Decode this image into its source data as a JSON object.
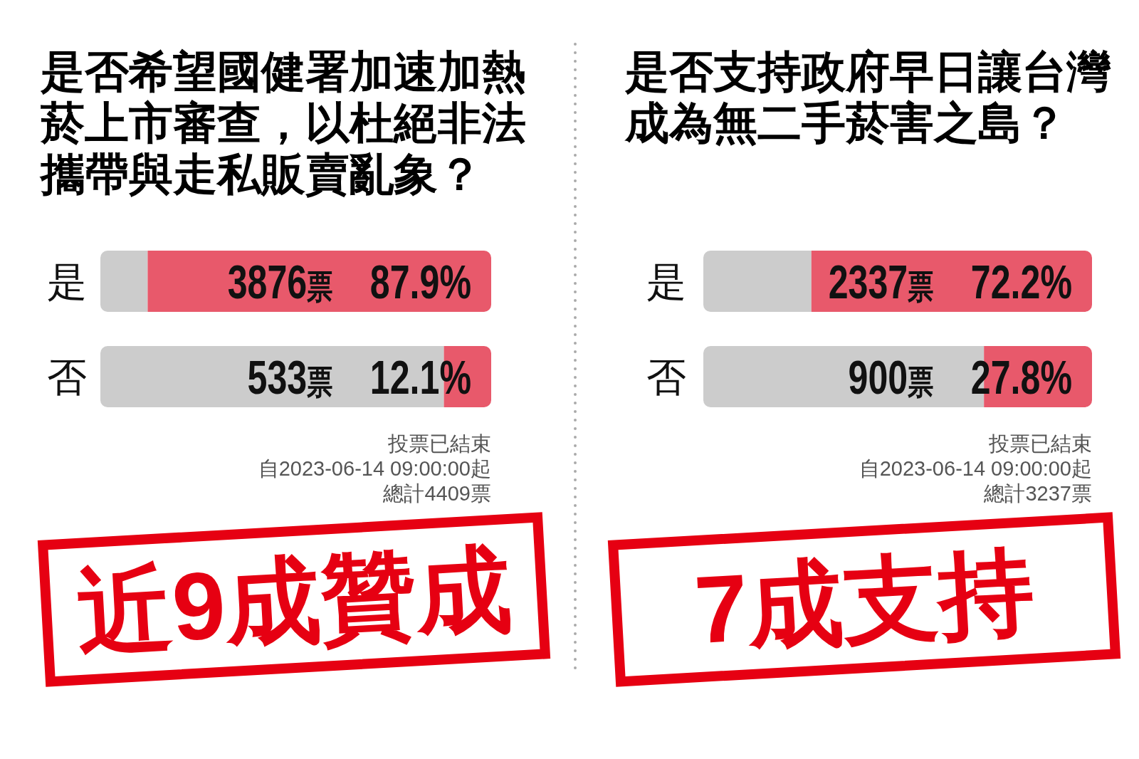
{
  "chart_data": [
    {
      "type": "bar",
      "title": "是否希望國健署加速加熱菸上市審查，以杜絕非法攜帶與走私販賣亂象？",
      "categories": [
        "是",
        "否"
      ],
      "orientation": "horizontal",
      "tick_labels": "y",
      "series": [
        {
          "color": "#e8596b",
          "values": [
            87.9,
            12.1
          ],
          "value_labels": [
            "87.9%",
            "12.1%"
          ]
        }
      ],
      "annotations": [
        "3876票",
        "533票",
        "投票已結束",
        "自2023-06-14 09:00:00起",
        "總計4409票",
        "近9成贊成"
      ]
    },
    {
      "type": "bar",
      "title": "是否支持政府早日讓台灣成為無二手菸害之島？",
      "categories": [
        "是",
        "否"
      ],
      "orientation": "horizontal",
      "tick_labels": "y",
      "series": [
        {
          "color": "#e8596b",
          "values": [
            72.2,
            27.8
          ],
          "value_labels": [
            "72.2%",
            "27.8%"
          ]
        }
      ],
      "annotations": [
        "2337票",
        "900票",
        "投票已結束",
        "自2023-06-14 09:00:00起",
        "總計3237票",
        "7成支持"
      ]
    }
  ]
}
